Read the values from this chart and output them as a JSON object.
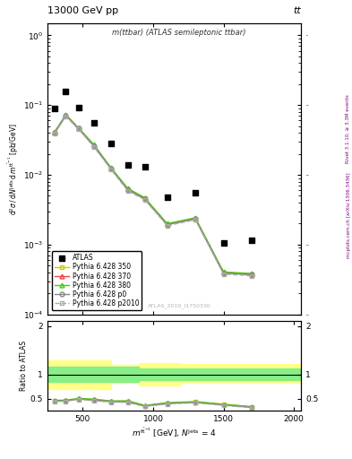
{
  "title_left": "13000 GeV pp",
  "title_right": "tt",
  "annotation": "m(ttbar) (ATLAS semileptonic ttbar)",
  "watermark": "ATLAS_2019_I1750330",
  "right_label_top": "Rivet 3.1.10, ≥ 3.3M events",
  "right_label_bot": "mcplots.cern.ch [arXiv:1306.3436]",
  "x_atlas": [
    300,
    380,
    470,
    580,
    700,
    820,
    940,
    1100,
    1300,
    1500,
    1700
  ],
  "y_atlas": [
    0.088,
    0.155,
    0.093,
    0.055,
    0.028,
    0.014,
    0.013,
    0.0048,
    0.0055,
    0.00105,
    0.00115
  ],
  "x_mc": [
    300,
    380,
    470,
    580,
    700,
    820,
    940,
    1100,
    1300,
    1500,
    1700
  ],
  "y_350": [
    0.04,
    0.071,
    0.046,
    0.026,
    0.0124,
    0.0062,
    0.0046,
    0.00195,
    0.00237,
    0.0004,
    0.00038
  ],
  "y_370": [
    0.04,
    0.071,
    0.046,
    0.026,
    0.0124,
    0.0062,
    0.0046,
    0.00195,
    0.00235,
    0.000395,
    0.000375
  ],
  "y_380": [
    0.041,
    0.073,
    0.047,
    0.027,
    0.0127,
    0.0064,
    0.0047,
    0.002,
    0.00242,
    0.000405,
    0.000385
  ],
  "y_p0": [
    0.04,
    0.071,
    0.046,
    0.026,
    0.0124,
    0.0061,
    0.0045,
    0.00193,
    0.00234,
    0.00039,
    0.00037
  ],
  "y_p2010": [
    0.039,
    0.069,
    0.045,
    0.025,
    0.012,
    0.0059,
    0.0044,
    0.00187,
    0.00227,
    0.000378,
    0.000358
  ],
  "ratio_350": [
    0.455,
    0.458,
    0.495,
    0.473,
    0.443,
    0.443,
    0.354,
    0.406,
    0.431,
    0.381,
    0.33
  ],
  "ratio_370": [
    0.455,
    0.458,
    0.495,
    0.473,
    0.443,
    0.443,
    0.354,
    0.406,
    0.427,
    0.376,
    0.326
  ],
  "ratio_380": [
    0.466,
    0.471,
    0.505,
    0.491,
    0.454,
    0.457,
    0.362,
    0.417,
    0.44,
    0.386,
    0.335
  ],
  "ratio_p0": [
    0.455,
    0.458,
    0.495,
    0.473,
    0.443,
    0.436,
    0.346,
    0.402,
    0.425,
    0.371,
    0.322
  ],
  "ratio_p2010": [
    0.443,
    0.445,
    0.484,
    0.455,
    0.429,
    0.421,
    0.338,
    0.39,
    0.413,
    0.36,
    0.311
  ],
  "band_x_edges": [
    250,
    350,
    700,
    900,
    1200,
    2050
  ],
  "band_green_lo": [
    0.84,
    0.84,
    0.84,
    0.89,
    0.89,
    0.89
  ],
  "band_green_hi": [
    1.16,
    1.16,
    1.16,
    1.13,
    1.13,
    1.13
  ],
  "band_yellow_lo": [
    0.7,
    0.7,
    0.82,
    0.77,
    0.82,
    0.82
  ],
  "band_yellow_hi": [
    1.3,
    1.3,
    1.2,
    1.23,
    1.22,
    1.22
  ],
  "color_350": "#cccc00",
  "color_370": "#ee4444",
  "color_380": "#44cc00",
  "color_p0": "#888888",
  "color_p2010": "#aaaaaa",
  "ylim_main": [
    0.0001,
    1.5
  ],
  "ylim_ratio": [
    0.25,
    2.1
  ],
  "xlim": [
    250,
    2050
  ],
  "yticks_ratio": [
    0.5,
    1.0,
    2.0
  ],
  "ytick_ratio_labels": [
    "0.5",
    "1",
    "2"
  ]
}
